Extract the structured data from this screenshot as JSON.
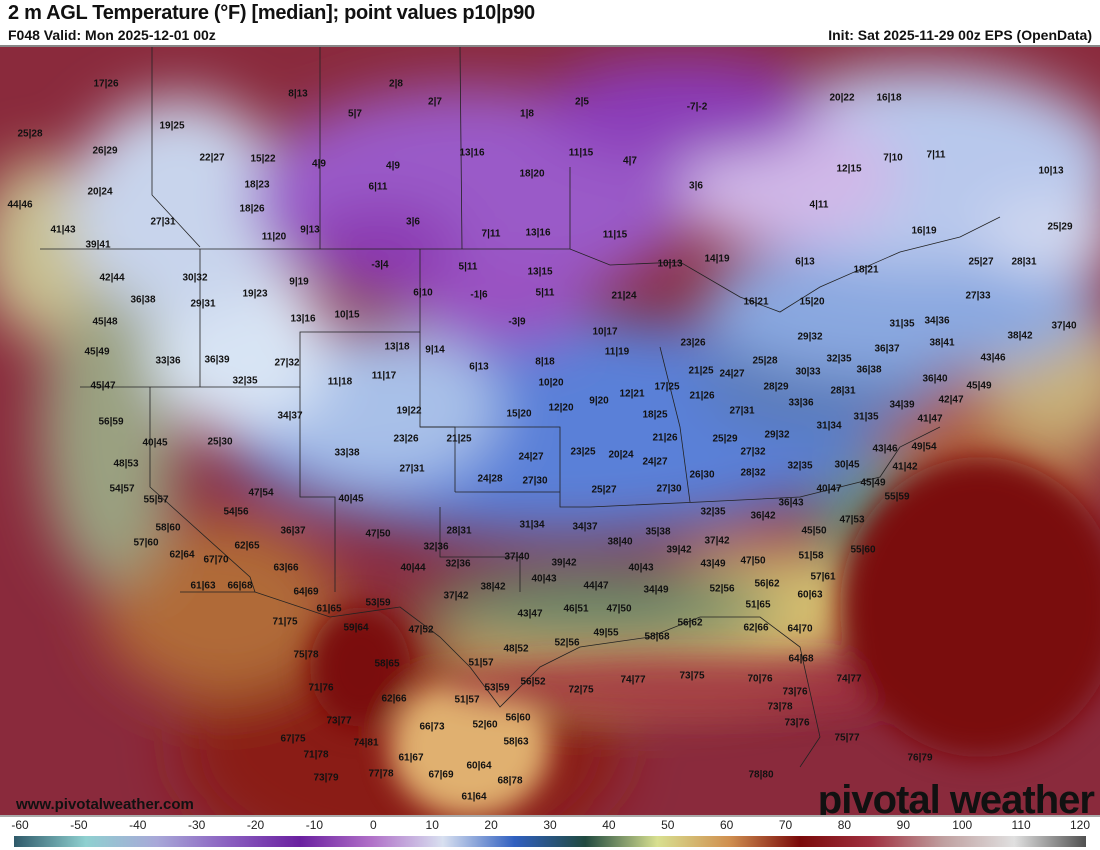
{
  "header": {
    "title": "2 m AGL Temperature (°F) [median]; point values p10|p90",
    "valid": "F048 Valid: Mon 2025-12-01 00z",
    "init": "Init: Sat 2025-11-29 00z EPS (OpenData)"
  },
  "footer": {
    "site": "www.pivotalweather.com",
    "logo": "pivotal weather"
  },
  "colorbar": {
    "ticks": [
      "-60",
      "-50",
      "-40",
      "-30",
      "-20",
      "-10",
      "0",
      "10",
      "20",
      "30",
      "40",
      "50",
      "60",
      "70",
      "80",
      "90",
      "100",
      "110",
      "120"
    ],
    "unit": "°F",
    "colors": [
      "#2f5a6a",
      "#8fd0d0",
      "#a8a8d8",
      "#8a5fc0",
      "#6a20a0",
      "#b070c8",
      "#d8e0f0",
      "#3060c0",
      "#204a40",
      "#d8e090",
      "#d09050",
      "#7a0a0a",
      "#a03040",
      "#c0a0a0",
      "#e0e0e0",
      "#505050"
    ]
  },
  "points": [
    "17|26",
    "8|13",
    "2|8",
    "2|7",
    "5|7",
    "1|8",
    "2|5",
    "-7|-2",
    "20|22",
    "16|18",
    "25|28",
    "19|25",
    "26|29",
    "22|27",
    "15|22",
    "4|9",
    "4|9",
    "13|16",
    "11|15",
    "4|7",
    "12|15",
    "7|10",
    "7|11",
    "10|13",
    "20|24",
    "18|23",
    "6|11",
    "18|20",
    "3|6",
    "4|11",
    "44|46",
    "18|26",
    "27|31",
    "41|43",
    "3|6",
    "9|13",
    "11|20",
    "7|11",
    "13|16",
    "11|15",
    "16|19",
    "25|29",
    "39|41",
    "-3|4",
    "5|11",
    "13|15",
    "10|13",
    "14|19",
    "6|13",
    "18|21",
    "25|27",
    "28|31",
    "42|44",
    "30|32",
    "9|19",
    "6|10",
    "-1|6",
    "5|11",
    "21|24",
    "19|23",
    "27|33",
    "36|38",
    "29|31",
    "16|21",
    "15|20",
    "45|48",
    "13|16",
    "10|15",
    "-3|9",
    "10|17",
    "31|35",
    "34|36",
    "37|40",
    "38|42",
    "29|32",
    "13|18",
    "9|14",
    "11|19",
    "23|26",
    "36|37",
    "38|41",
    "45|49",
    "33|36",
    "36|39",
    "27|32",
    "8|18",
    "6|13",
    "32|35",
    "43|46",
    "25|28",
    "11|18",
    "11|17",
    "10|20",
    "21|25",
    "24|27",
    "30|33",
    "36|38",
    "45|47",
    "32|35",
    "12|21",
    "17|25",
    "28|31",
    "36|40",
    "45|49",
    "21|26",
    "28|29",
    "33|36",
    "34|39",
    "42|47",
    "56|59",
    "34|37",
    "19|22",
    "9|20",
    "12|20",
    "15|20",
    "18|25",
    "27|31",
    "31|35",
    "41|47",
    "40|45",
    "25|30",
    "23|26",
    "21|25",
    "21|26",
    "25|29",
    "29|32",
    "31|34",
    "33|38",
    "24|27",
    "23|25",
    "20|24",
    "27|32",
    "43|46",
    "49|54",
    "48|53",
    "27|31",
    "24|27",
    "32|35",
    "30|45",
    "41|42",
    "26|30",
    "28|32",
    "24|28",
    "27|30",
    "40|47",
    "45|49",
    "55|59",
    "54|57",
    "47|54",
    "25|27",
    "27|30",
    "55|57",
    "40|45",
    "36|43",
    "54|56",
    "32|35",
    "36|42",
    "47|53",
    "58|60",
    "36|37",
    "47|50",
    "31|34",
    "34|37",
    "28|31",
    "35|38",
    "45|50",
    "57|60",
    "62|65",
    "32|36",
    "38|40",
    "37|42",
    "39|42",
    "55|60",
    "62|64",
    "67|70",
    "37|40",
    "39|42",
    "51|58",
    "47|50",
    "63|66",
    "40|44",
    "32|36",
    "40|43",
    "43|49",
    "57|61",
    "61|63",
    "66|68",
    "40|43",
    "38|42",
    "44|47",
    "56|62",
    "64|69",
    "37|42",
    "34|49",
    "52|56",
    "60|63",
    "53|59",
    "46|51",
    "47|50",
    "51|65",
    "61|65",
    "43|47",
    "71|75",
    "59|64",
    "47|52",
    "56|62",
    "62|66",
    "64|70",
    "49|55",
    "58|68",
    "52|56",
    "48|52",
    "75|78",
    "51|57",
    "64|68",
    "58|65",
    "56|52",
    "72|75",
    "74|77",
    "73|75",
    "70|76",
    "71|76",
    "53|59",
    "73|76",
    "74|77",
    "62|66",
    "51|57",
    "73|78",
    "56|60",
    "73|77",
    "66|73",
    "52|60",
    "73|76",
    "67|75",
    "74|81",
    "58|63",
    "75|77",
    "71|78",
    "61|67",
    "60|64",
    "76|79",
    "77|78",
    "67|69",
    "68|78",
    "73|79",
    "78|80",
    "61|64"
  ]
}
